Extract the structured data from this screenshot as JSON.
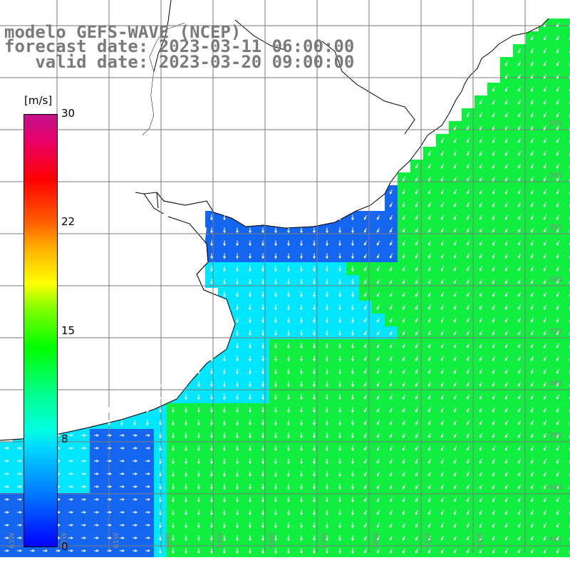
{
  "title": {
    "line1": "modelo GEFS-WAVE (NCEP)",
    "line2": "forecast date: 2023-03-11 06:00:00",
    "line3": "   valid date: 2023-03-20 09:00:00"
  },
  "colorbar": {
    "unit": "[m/s]",
    "ticks": [
      "30",
      "22",
      "15",
      "8",
      "0"
    ],
    "min": 0,
    "max": 30,
    "colors": [
      "#0000ff",
      "#0080ff",
      "#00d8ff",
      "#00ffe0",
      "#00ff90",
      "#00ff00",
      "#80ff00",
      "#ffff00",
      "#ffb000",
      "#ff6000",
      "#ff0000",
      "#e8006a",
      "#c2128a"
    ]
  },
  "lat_labels": [
    "33S",
    "34S",
    "35S",
    "36S",
    "37S",
    "38S",
    "39S",
    "40S",
    "41S"
  ],
  "lon_labels": [
    "63W",
    "62W",
    "61W",
    "60W",
    "59W",
    "58W",
    "57W",
    "56W",
    "55W",
    "54W"
  ],
  "field_colors": {
    "low": "#1466f0",
    "mid": "#00e6ff",
    "high": "#10ee40"
  }
}
